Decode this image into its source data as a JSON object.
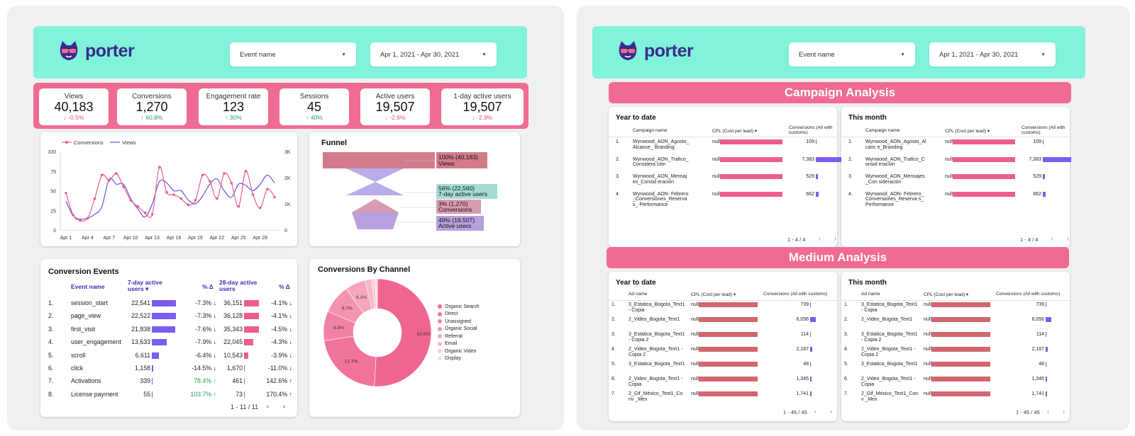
{
  "left": {
    "brand": "porter",
    "filters": {
      "event": "Event name",
      "date": "Apr 1, 2021 - Apr 30, 2021"
    },
    "kpis": [
      {
        "title": "Views",
        "value": "40,183",
        "delta": "↓ -0.5%",
        "dir": "down"
      },
      {
        "title": "Conversions",
        "value": "1,270",
        "delta": "↑ 60.8%",
        "dir": "up"
      },
      {
        "title": "Engagement rate",
        "value": "123",
        "delta": "↑ 30%",
        "dir": "up"
      },
      {
        "title": "Sessions",
        "value": "45",
        "delta": "↑ 40%",
        "dir": "up"
      },
      {
        "title": "Active users",
        "value": "19,507",
        "delta": "↓ -2.9%",
        "dir": "down"
      },
      {
        "title": "1-day active users",
        "value": "19,507",
        "delta": "↓ -2.9%",
        "dir": "down"
      }
    ],
    "linechart": {
      "legend": [
        "Conversions",
        "Views"
      ],
      "y_left_ticks": [
        "100",
        "75",
        "50",
        "25",
        "0"
      ],
      "y_right_ticks": [
        "3K",
        "2K",
        "1K",
        "0"
      ],
      "x_ticks": [
        "Apr 1",
        "Apr 4",
        "Apr 7",
        "Apr 10",
        "Apr 13",
        "Apr 16",
        "Apr 19",
        "Apr 22",
        "Apr 25",
        "Apr 28"
      ]
    },
    "funnel": {
      "title": "Funnel",
      "steps": [
        {
          "pct": "100% (40,183)",
          "name": "Views",
          "color": "#d27b8b"
        },
        {
          "pct": "56% (22,560)",
          "name": "7-day active users",
          "color": "#a4dcd4"
        },
        {
          "pct": "3% (1,270)",
          "name": "Conversions",
          "color": "#d99bb0"
        },
        {
          "pct": "49% (19,507)",
          "name": "Active users",
          "color": "#b7a0dd"
        }
      ]
    },
    "conversion_events": {
      "title": "Conversion Events",
      "headers": {
        "event": "Event name",
        "d7": "7-day active users ▾",
        "pct1": "% Δ",
        "d28": "28-day active users",
        "pct2": "% Δ"
      },
      "rows": [
        {
          "n": "1.",
          "event": "session_start",
          "d7": "22,541",
          "p1": "-7.3% ↓",
          "d28": "36,151",
          "p2": "-4.1% ↓"
        },
        {
          "n": "2.",
          "event": "page_view",
          "d7": "22,522",
          "p1": "-7.3% ↓",
          "d28": "36,128",
          "p2": "-4.1% ↓"
        },
        {
          "n": "3.",
          "event": "first_visit",
          "d7": "21,838",
          "p1": "-7.6% ↓",
          "d28": "35,343",
          "p2": "-4.5% ↓"
        },
        {
          "n": "4.",
          "event": "user_engagement",
          "d7": "13,633",
          "p1": "-7.9% ↓",
          "d28": "22,045",
          "p2": "-4.3% ↓"
        },
        {
          "n": "5.",
          "event": "scroll",
          "d7": "6,611",
          "p1": "-6.4% ↓",
          "d28": "10,543",
          "p2": "-3.9% ↓"
        },
        {
          "n": "6.",
          "event": "click",
          "d7": "1,158",
          "p1": "-14.5% ↓",
          "d28": "1,670",
          "p2": "-11.0% ↓"
        },
        {
          "n": "7.",
          "event": "Activations",
          "d7": "339",
          "p1": "78.4% ↑",
          "d28": "461",
          "p2": "142.6% ↑"
        },
        {
          "n": "8.",
          "event": "License payment",
          "d7": "55",
          "p1": "103.7% ↑",
          "d28": "73",
          "p2": "170.4% ↑"
        }
      ],
      "pager": "1 - 11 / 11"
    },
    "channels": {
      "title": "Conversions By Channel",
      "labels": [
        "Organic Search",
        "Direct",
        "Unassigned",
        "Organic Social",
        "Referral",
        "Email",
        "Organic Video",
        "Display"
      ],
      "colors": [
        "#ee6690",
        "#f0739a",
        "#f282a4",
        "#f493b0",
        "#f6a5bc",
        "#f8b7c9",
        "#fac9d6",
        "#fcdbe4"
      ],
      "slice_labels": [
        "50.9%",
        "21.7%",
        "8.9%",
        "8.7%",
        "6.1%"
      ]
    }
  },
  "right": {
    "brand": "porter",
    "filters": {
      "event": "Event name",
      "date": "Apr 1, 2021 - Apr 30, 2021"
    },
    "campaign": {
      "banner": "Campaign Analysis",
      "ytd_title": "Year to date",
      "month_title": "This month",
      "headers": {
        "name": "Campaign name",
        "cpl": "CPL (Cost per lead) ▾",
        "conv": "Conversions (All with customs)"
      },
      "ytd_rows": [
        {
          "n": "1.",
          "name": "Wynwood_AON_Agosto_Alcance_ Branding",
          "cpl": "null",
          "conv": "109"
        },
        {
          "n": "2.",
          "name": "Wynwood_AON_Trafico_Considera ción",
          "cpl": "null",
          "conv": "7,383"
        },
        {
          "n": "3.",
          "name": "Wynwood_AON_Mensajes_Consid eración",
          "cpl": "null",
          "conv": "529"
        },
        {
          "n": "4.",
          "name": "Wynwood_AON- Febrero_Conversiones_Reservas_ Performance",
          "cpl": "null",
          "conv": "662"
        }
      ],
      "month_rows": [
        {
          "n": "1.",
          "name": "Wynwood_AON_Agosto_Alcanc e_Branding",
          "cpl": "null",
          "conv": "109"
        },
        {
          "n": "2.",
          "name": "Wynwood_AON_Trafico_Consid eración",
          "cpl": "null",
          "conv": "7,383"
        },
        {
          "n": "3.",
          "name": "Wynwood_AON_Mensajes_Con sideración",
          "cpl": "null",
          "conv": "529"
        },
        {
          "n": "4.",
          "name": "Wynwood_AON- Febrero_Conversiones_Reserva s_Performance",
          "cpl": "null",
          "conv": "662"
        }
      ],
      "pager": "1 - 4 / 4"
    },
    "medium": {
      "banner": "Medium Analysis",
      "ytd_title": "Year to date",
      "month_title": "This month",
      "headers": {
        "name": "Ad name",
        "cpl": "CPL (Cost per lead) ▾",
        "conv": "Conversions (All with customs)"
      },
      "ytd_rows": [
        {
          "n": "1.",
          "name": "3_Estatica_Bogota_Text1 - Copia",
          "cpl": "null",
          "conv": "739"
        },
        {
          "n": "2.",
          "name": "2_Video_Bogota_Text1",
          "cpl": "null",
          "conv": "6,056"
        },
        {
          "n": "3.",
          "name": "3_Estatica_Bogota_Text1 - Copia 2",
          "cpl": "null",
          "conv": "114"
        },
        {
          "n": "4.",
          "name": "2_Video_Bogota_Text1 - Copia 2",
          "cpl": "null",
          "conv": "2,187"
        },
        {
          "n": "5.",
          "name": "3_Estatica_Bogota_Text1",
          "cpl": "null",
          "conv": "48"
        },
        {
          "n": "6.",
          "name": "2_Video_Bogota_Text1 - Copia",
          "cpl": "null",
          "conv": "1,345"
        },
        {
          "n": "7.",
          "name": "2_Gif_México_Text1_Conv _Mex",
          "cpl": "null",
          "conv": "1,741"
        }
      ],
      "month_rows": [
        {
          "n": "1.",
          "name": "3_Estatica_Bogota_Text1 - Copia",
          "cpl": "null",
          "conv": "739"
        },
        {
          "n": "2.",
          "name": "2_Video_Bogota_Text1",
          "cpl": "null",
          "conv": "6,056"
        },
        {
          "n": "3.",
          "name": "3_Estatica_Bogota_Text1 - Copia 2",
          "cpl": "null",
          "conv": "114"
        },
        {
          "n": "4.",
          "name": "2_Video_Bogota_Text1 - Copia 2",
          "cpl": "null",
          "conv": "2,187"
        },
        {
          "n": "5.",
          "name": "3_Estatica_Bogota_Text1",
          "cpl": "null",
          "conv": "48"
        },
        {
          "n": "6.",
          "name": "2_Video_Bogota_Text1 - Copia",
          "cpl": "null",
          "conv": "1,345"
        },
        {
          "n": "7.",
          "name": "2_Gif_México_Text1_Conv _Mex",
          "cpl": "null",
          "conv": "1,741"
        }
      ],
      "pager": "1 - 45 / 45"
    }
  },
  "colors": {
    "pink": "#ef6b91",
    "mint": "#80f3da",
    "purple": "#7b5cf0",
    "bar_pink": "#ec5f8a",
    "bar_dark": "#d2656f"
  },
  "chart_data": [
    {
      "type": "line",
      "x": [
        "Apr 1",
        "Apr 2",
        "Apr 3",
        "Apr 4",
        "Apr 5",
        "Apr 6",
        "Apr 7",
        "Apr 8",
        "Apr 9",
        "Apr 10",
        "Apr 11",
        "Apr 12",
        "Apr 13",
        "Apr 14",
        "Apr 15",
        "Apr 16",
        "Apr 17",
        "Apr 18",
        "Apr 19",
        "Apr 20",
        "Apr 21",
        "Apr 22",
        "Apr 23",
        "Apr 24",
        "Apr 25",
        "Apr 26",
        "Apr 27",
        "Apr 28",
        "Apr 29",
        "Apr 30"
      ],
      "series": [
        {
          "name": "Conversions",
          "axis": "left",
          "values": [
            47,
            19,
            12,
            15,
            40,
            70,
            63,
            72,
            55,
            38,
            30,
            22,
            20,
            80,
            48,
            45,
            40,
            32,
            38,
            70,
            62,
            40,
            72,
            60,
            30,
            75,
            45,
            28,
            52,
            42
          ]
        },
        {
          "name": "Views",
          "axis": "right",
          "values": [
            1100,
            550,
            420,
            450,
            600,
            900,
            1950,
            1750,
            1750,
            1200,
            800,
            500,
            1000,
            1850,
            1800,
            1500,
            1500,
            1150,
            1000,
            1300,
            1750,
            1950,
            1500,
            1250,
            1750,
            1700,
            1500,
            1750,
            2100,
            1800
          ]
        }
      ],
      "ylim": [
        0,
        100
      ],
      "ylim_right": [
        0,
        3000
      ],
      "legend": "top-left",
      "grid": false
    },
    {
      "type": "pie",
      "labels": [
        "Organic Search",
        "Direct",
        "Unassigned",
        "Organic Social",
        "Referral",
        "Email",
        "Organic Video",
        "Display"
      ],
      "values": [
        50.9,
        21.7,
        8.9,
        8.7,
        6.1,
        2.0,
        1.0,
        0.7
      ],
      "legend": "right"
    }
  ]
}
